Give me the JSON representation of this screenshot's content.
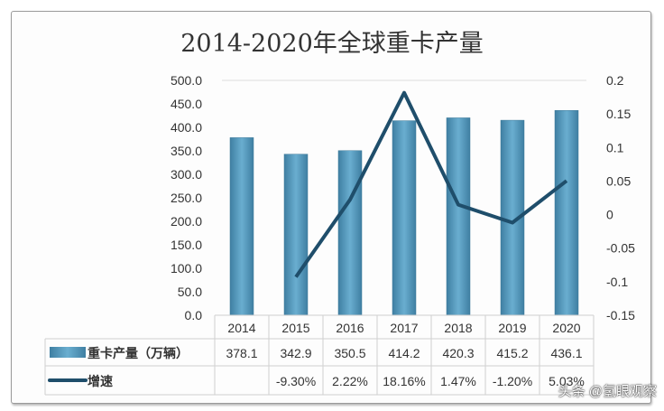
{
  "chart_data": {
    "type": "bar+line",
    "title": "2014-2020年全球重卡产量",
    "categories": [
      "2014",
      "2015",
      "2016",
      "2017",
      "2018",
      "2019",
      "2020"
    ],
    "series": [
      {
        "name": "重卡产量（万辆）",
        "type": "bar",
        "axis": "left",
        "values": [
          378.1,
          342.9,
          350.5,
          414.2,
          420.3,
          415.2,
          436.1
        ],
        "labels": [
          "378.1",
          "342.9",
          "350.5",
          "414.2",
          "420.3",
          "415.2",
          "436.1"
        ]
      },
      {
        "name": "增速",
        "type": "line",
        "axis": "right",
        "values": [
          null,
          -0.093,
          0.0222,
          0.1816,
          0.0147,
          -0.012,
          0.0503
        ],
        "labels": [
          "",
          "-9.30%",
          "2.22%",
          "18.16%",
          "1.47%",
          "-1.20%",
          "5.03%"
        ]
      }
    ],
    "y_left": {
      "lim": [
        0,
        500
      ],
      "ticks": [
        "0.0",
        "50.0",
        "100.0",
        "150.0",
        "200.0",
        "250.0",
        "300.0",
        "350.0",
        "400.0",
        "450.0",
        "500.0"
      ]
    },
    "y_right": {
      "lim": [
        -0.15,
        0.2
      ],
      "ticks": [
        "-0.15",
        "-0.1",
        "-0.05",
        "0",
        "0.05",
        "0.1",
        "0.15",
        "0.2"
      ]
    },
    "legend": "data-table",
    "colors": {
      "bar": "#5b9bbf",
      "bar_dark": "#3c7898",
      "line": "#1f4e6b"
    }
  },
  "watermark": "头条 @氢眼观察"
}
